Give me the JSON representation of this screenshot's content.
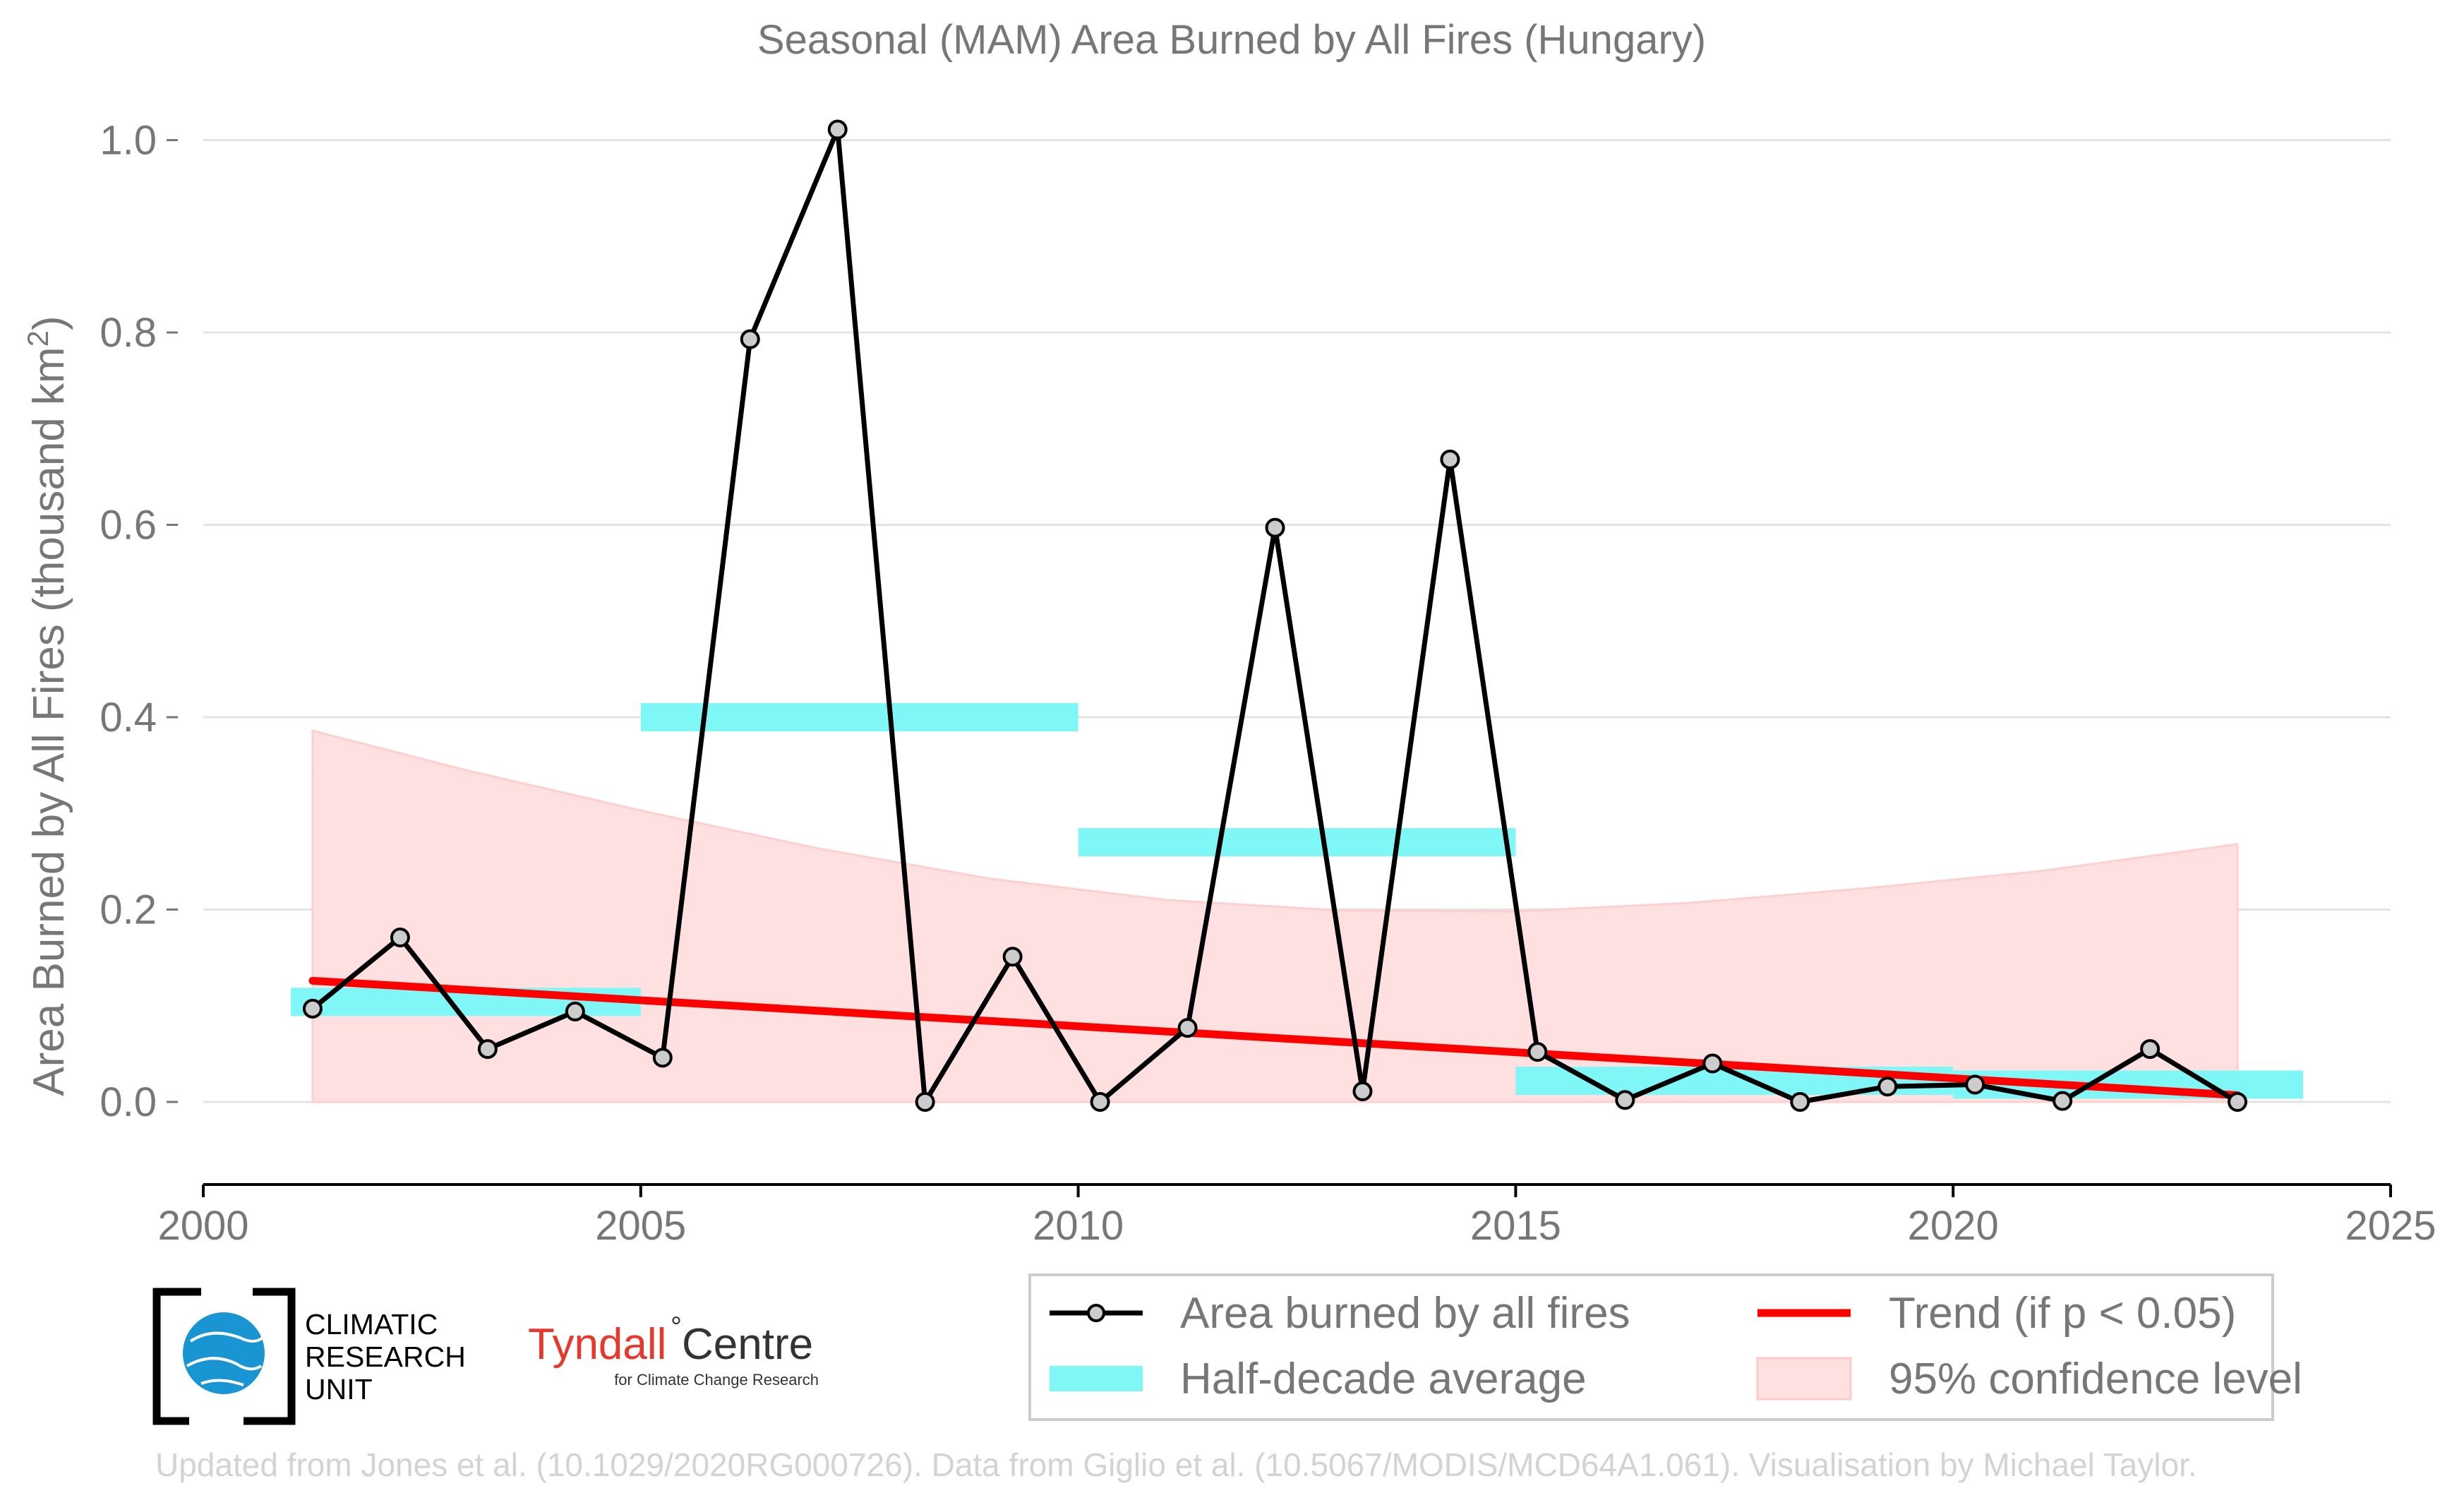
{
  "chart_data": {
    "type": "line",
    "title": "Seasonal (MAM) Area Burned by All Fires (Hungary)",
    "ylabel": "Area Burned by All Fires (thousand km",
    "ylabel_superscript": "2",
    "ylabel_close": ")",
    "xlabel": "",
    "xlim": [
      2000,
      2025
    ],
    "ylim": [
      -0.08,
      1.04
    ],
    "x_ticks": [
      "2000",
      "2005",
      "2010",
      "2015",
      "2020",
      "2025"
    ],
    "y_ticks": [
      "0.0",
      "0.2",
      "0.4",
      "0.6",
      "0.8",
      "1.0"
    ],
    "grid": true,
    "series": [
      {
        "name": "Area burned by all fires",
        "type": "line-markers",
        "color": "#000000",
        "marker_fill": "#cccccc",
        "x": [
          2001.25,
          2002.25,
          2003.25,
          2004.25,
          2005.25,
          2006.25,
          2007.25,
          2008.25,
          2009.25,
          2010.25,
          2011.25,
          2012.25,
          2013.25,
          2014.25,
          2015.25,
          2016.25,
          2017.25,
          2018.25,
          2019.25,
          2020.25,
          2021.25,
          2022.25,
          2023.25
        ],
        "y": [
          0.097,
          0.171,
          0.055,
          0.094,
          0.046,
          0.793,
          1.011,
          0.0,
          0.151,
          0.0,
          0.077,
          0.597,
          0.011,
          0.668,
          0.052,
          0.002,
          0.04,
          0.0,
          0.016,
          0.018,
          0.001,
          0.055,
          0.0
        ]
      },
      {
        "name": "Half-decade average",
        "type": "bars",
        "color": "#7ff7f7",
        "segments": [
          {
            "x0": 2001.0,
            "x1": 2005.0,
            "y": 0.104
          },
          {
            "x0": 2005.0,
            "x1": 2010.0,
            "y": 0.4
          },
          {
            "x0": 2010.0,
            "x1": 2015.0,
            "y": 0.27
          },
          {
            "x0": 2015.0,
            "x1": 2020.0,
            "y": 0.022
          },
          {
            "x0": 2020.0,
            "x1": 2024.0,
            "y": 0.018
          }
        ]
      },
      {
        "name": "Trend (if p < 0.05)",
        "type": "line",
        "color": "#ff0000",
        "x": [
          2001.25,
          2023.25
        ],
        "y": [
          0.126,
          0.007
        ]
      },
      {
        "name": "95% confidence level",
        "type": "area",
        "color": "#ffe0e0",
        "x": [
          2001.25,
          2003.0,
          2005.0,
          2007.0,
          2009.0,
          2011.0,
          2013.0,
          2015.0,
          2017.0,
          2019.0,
          2021.0,
          2023.25
        ],
        "upper": [
          0.386,
          0.345,
          0.303,
          0.264,
          0.232,
          0.21,
          0.199,
          0.198,
          0.207,
          0.222,
          0.24,
          0.268
        ],
        "lower": [
          0,
          0,
          0,
          0,
          0,
          0,
          0,
          0,
          0,
          0,
          0,
          0
        ]
      }
    ]
  },
  "legend": {
    "placement": "bottom-right",
    "items": [
      {
        "label": "Area burned by all fires",
        "kind": "line-marker",
        "color": "#000000"
      },
      {
        "label": "Trend (if p < 0.05)",
        "kind": "line",
        "color": "#ff0000"
      },
      {
        "label": "Half-decade average",
        "kind": "band",
        "color": "#7ff7f7"
      },
      {
        "label": "95% confidence level",
        "kind": "area",
        "color": "#ffe0e0"
      }
    ]
  },
  "logos": {
    "cru_line1": "CLIMATIC",
    "cru_line2": "RESEARCH",
    "cru_line3": "UNIT",
    "tyndall_name": "Tyndall",
    "tyndall_degree": "°",
    "tyndall_centre": "Centre",
    "tyndall_sub": "for Climate Change Research"
  },
  "footer": "Updated from Jones et al. (10.1029/2020RG000726). Data from Giglio et al. (10.5067/MODIS/MCD64A1.061). Visualisation by Michael Taylor."
}
